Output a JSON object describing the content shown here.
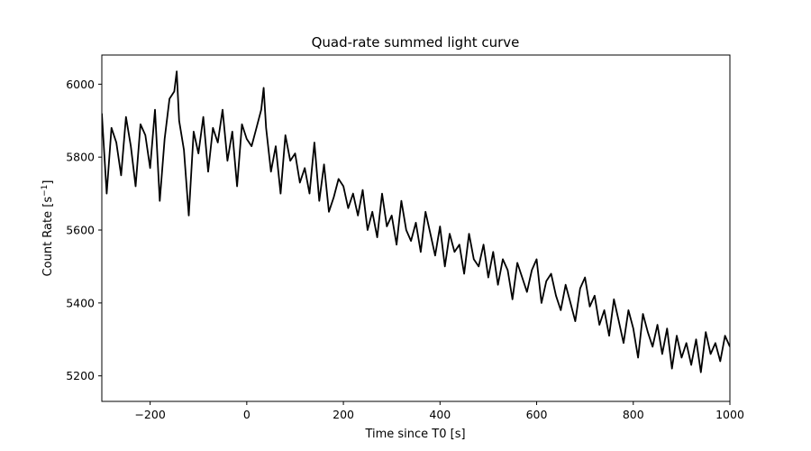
{
  "chart_data": {
    "type": "line",
    "title": "Quad-rate summed light curve",
    "xlabel": "Time since T0 [s]",
    "ylabel_prefix": "Count Rate [s",
    "ylabel_exponent": "−1",
    "ylabel_suffix": "]",
    "xlim": [
      -300,
      1000
    ],
    "ylim": [
      5130,
      6080
    ],
    "xticks": [
      -200,
      0,
      200,
      400,
      600,
      800,
      1000
    ],
    "xtick_labels": [
      "−200",
      "0",
      "200",
      "400",
      "600",
      "800",
      "1000"
    ],
    "yticks": [
      5200,
      5400,
      5600,
      5800,
      6000
    ],
    "ytick_labels": [
      "5200",
      "5400",
      "5600",
      "5800",
      "6000"
    ],
    "grid": false,
    "legend": "none",
    "series": [
      {
        "color": "#000000",
        "x": [
          -300,
          -290,
          -280,
          -270,
          -260,
          -250,
          -240,
          -230,
          -220,
          -210,
          -200,
          -190,
          -180,
          -170,
          -160,
          -150,
          -145,
          -140,
          -130,
          -120,
          -110,
          -100,
          -90,
          -80,
          -70,
          -60,
          -50,
          -40,
          -30,
          -20,
          -10,
          0,
          10,
          20,
          30,
          35,
          40,
          50,
          60,
          70,
          80,
          90,
          100,
          110,
          120,
          130,
          140,
          150,
          160,
          170,
          180,
          190,
          200,
          210,
          220,
          230,
          240,
          250,
          260,
          270,
          280,
          290,
          300,
          310,
          320,
          330,
          340,
          350,
          360,
          370,
          380,
          390,
          400,
          410,
          420,
          430,
          440,
          450,
          460,
          470,
          480,
          490,
          500,
          510,
          520,
          530,
          540,
          550,
          560,
          570,
          580,
          590,
          600,
          610,
          620,
          630,
          640,
          650,
          660,
          670,
          680,
          690,
          700,
          710,
          720,
          730,
          740,
          750,
          760,
          770,
          780,
          790,
          800,
          810,
          820,
          830,
          840,
          850,
          860,
          870,
          880,
          890,
          900,
          910,
          920,
          930,
          940,
          950,
          960,
          970,
          980,
          990,
          1000
        ],
        "y": [
          5920,
          5700,
          5880,
          5840,
          5750,
          5910,
          5830,
          5720,
          5890,
          5860,
          5770,
          5930,
          5680,
          5850,
          5960,
          5980,
          6035,
          5900,
          5820,
          5640,
          5870,
          5810,
          5910,
          5760,
          5880,
          5840,
          5930,
          5790,
          5870,
          5720,
          5890,
          5850,
          5830,
          5880,
          5930,
          5990,
          5880,
          5760,
          5830,
          5700,
          5860,
          5790,
          5810,
          5730,
          5770,
          5700,
          5840,
          5680,
          5780,
          5650,
          5690,
          5740,
          5720,
          5660,
          5700,
          5640,
          5710,
          5600,
          5650,
          5580,
          5700,
          5610,
          5640,
          5560,
          5680,
          5600,
          5570,
          5620,
          5540,
          5650,
          5590,
          5530,
          5610,
          5500,
          5590,
          5540,
          5560,
          5480,
          5590,
          5520,
          5500,
          5560,
          5470,
          5540,
          5450,
          5520,
          5490,
          5410,
          5510,
          5470,
          5430,
          5490,
          5520,
          5400,
          5460,
          5480,
          5420,
          5380,
          5450,
          5400,
          5350,
          5440,
          5470,
          5390,
          5420,
          5340,
          5380,
          5310,
          5410,
          5350,
          5290,
          5380,
          5330,
          5250,
          5370,
          5320,
          5280,
          5340,
          5260,
          5330,
          5220,
          5310,
          5250,
          5290,
          5230,
          5300,
          5210,
          5320,
          5260,
          5290,
          5240,
          5310,
          5280
        ]
      }
    ]
  }
}
